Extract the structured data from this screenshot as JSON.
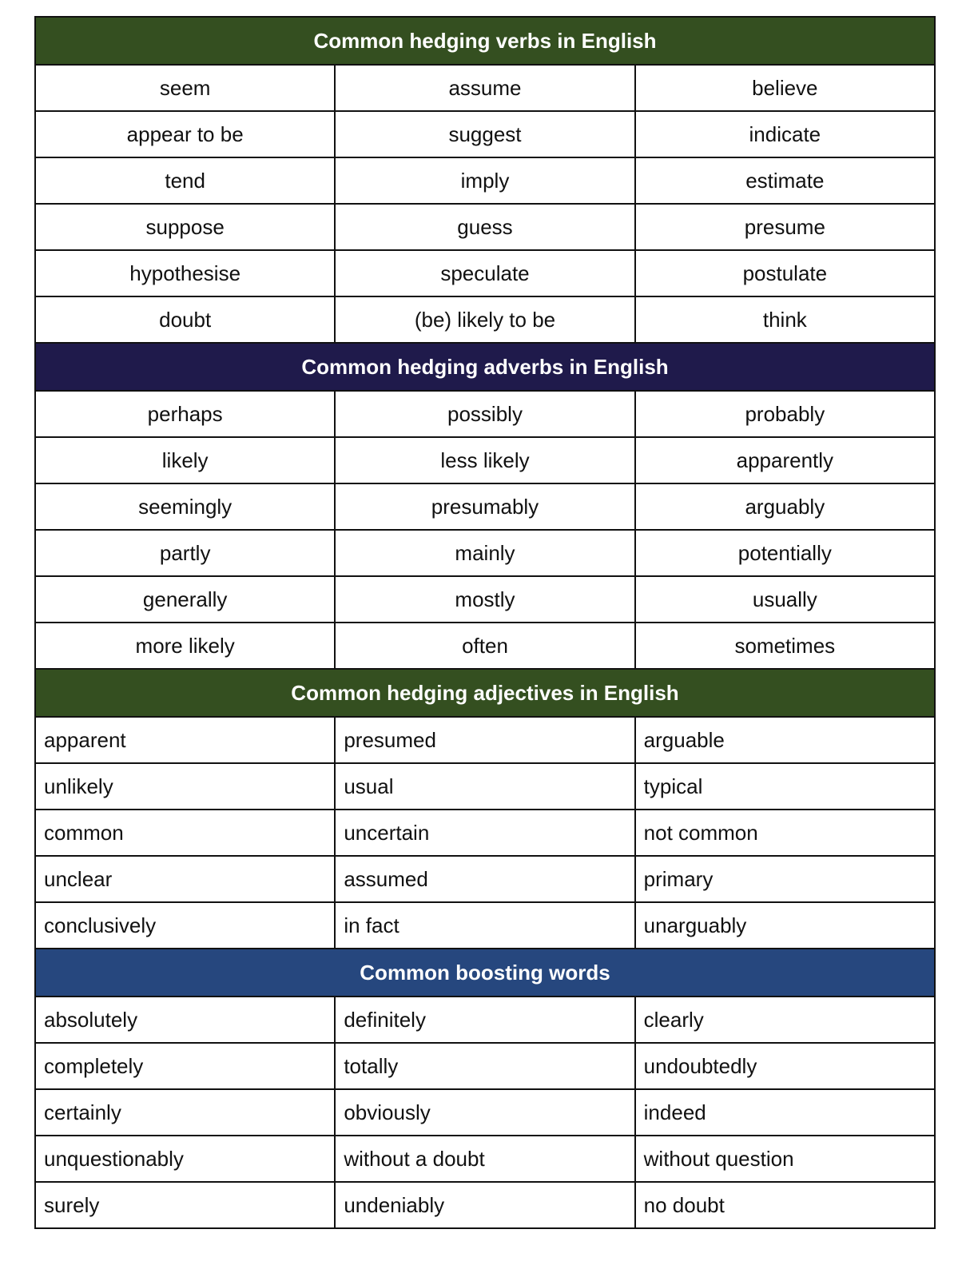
{
  "colors": {
    "verbs": "#344f20",
    "adverbs": "#1f1a4b",
    "adjectives": "#344f20",
    "boosting": "#26477e"
  },
  "sections": [
    {
      "key": "verbs",
      "title": "Common hedging verbs in English",
      "align": "center",
      "rows": [
        [
          "seem",
          "assume",
          "believe"
        ],
        [
          "appear to be",
          "suggest",
          "indicate"
        ],
        [
          "tend",
          "imply",
          "estimate"
        ],
        [
          "suppose",
          "guess",
          "presume"
        ],
        [
          "hypothesise",
          "speculate",
          "postulate"
        ],
        [
          "doubt",
          "(be) likely to be",
          "think"
        ]
      ]
    },
    {
      "key": "adverbs",
      "title": "Common hedging adverbs in English",
      "align": "center",
      "rows": [
        [
          "perhaps",
          "possibly",
          "probably"
        ],
        [
          "likely",
          "less likely",
          "apparently"
        ],
        [
          "seemingly",
          "presumably",
          "arguably"
        ],
        [
          "partly",
          "mainly",
          "potentially"
        ],
        [
          "generally",
          "mostly",
          "usually"
        ],
        [
          "more likely",
          "often",
          "sometimes"
        ]
      ]
    },
    {
      "key": "adjectives",
      "title": "Common hedging adjectives in English",
      "align": "left",
      "rows": [
        [
          "apparent",
          "presumed",
          "arguable"
        ],
        [
          "unlikely",
          "usual",
          "typical"
        ],
        [
          "common",
          "uncertain",
          "not common"
        ],
        [
          "unclear",
          "assumed",
          "primary"
        ],
        [
          "conclusively",
          "in fact",
          "unarguably"
        ]
      ]
    },
    {
      "key": "boosting",
      "title": "Common boosting words",
      "align": "left",
      "rows": [
        [
          "absolutely",
          "definitely",
          "clearly"
        ],
        [
          "completely",
          "totally",
          "undoubtedly"
        ],
        [
          "certainly",
          "obviously",
          "indeed"
        ],
        [
          "unquestionably",
          "without a doubt",
          "without question"
        ],
        [
          "surely",
          "undeniably",
          "no doubt"
        ]
      ]
    }
  ]
}
